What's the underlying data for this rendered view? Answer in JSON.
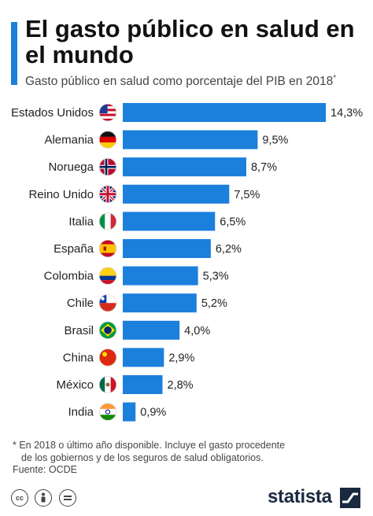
{
  "header": {
    "title": "El gasto público en salud en el mundo",
    "subtitle": "Gasto público en salud como porcentaje del PIB en 2018",
    "subtitle_mark": "*"
  },
  "chart_data": {
    "type": "bar",
    "orientation": "horizontal",
    "categories": [
      "Estados Unidos",
      "Alemania",
      "Noruega",
      "Reino Unido",
      "Italia",
      "España",
      "Colombia",
      "Chile",
      "Brasil",
      "China",
      "México",
      "India"
    ],
    "values": [
      14.3,
      9.5,
      8.7,
      7.5,
      6.5,
      6.2,
      5.3,
      5.2,
      4.0,
      2.9,
      2.8,
      0.9
    ],
    "value_labels": [
      "14,3%",
      "9,5%",
      "8,7%",
      "7,5%",
      "6,5%",
      "6,2%",
      "5,3%",
      "5,2%",
      "4,0%",
      "2,9%",
      "2,8%",
      "0,9%"
    ],
    "flags": [
      "us-flag",
      "germany-flag",
      "norway-flag",
      "uk-flag",
      "italy-flag",
      "spain-flag",
      "colombia-flag",
      "chile-flag",
      "brazil-flag",
      "china-flag",
      "mexico-flag",
      "india-flag"
    ],
    "bar_color": "#1b7fdc",
    "xlim": [
      0,
      14.3
    ],
    "grid": false
  },
  "footer": {
    "note_line1": "* En 2018 o último año disponible. Incluye el gasto procedente",
    "note_line2": "de los gobiernos y de los seguros de salud obligatorios.",
    "source": "Fuente: OCDE",
    "license_icons": [
      "cc-icon",
      "attribution-icon",
      "no-derivatives-icon"
    ],
    "brand": "statista"
  }
}
